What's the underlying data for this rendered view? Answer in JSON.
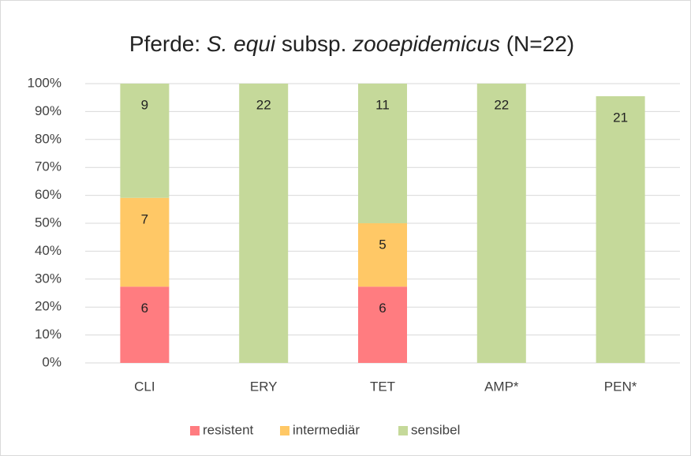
{
  "chart_data": {
    "type": "stacked_bar",
    "title": [
      "Pferde: ",
      "S. equi",
      " subsp. ",
      "zooepidemicus",
      " (N=22)"
    ],
    "title_italic": [
      false,
      true,
      false,
      true,
      false
    ],
    "categories": [
      "CLI",
      "ERY",
      "TET",
      "AMP*",
      "PEN*"
    ],
    "series": [
      {
        "name": "resistent",
        "color": "#ff7c80",
        "values": [
          27.3,
          0,
          27.3,
          0,
          0
        ],
        "counts": [
          6,
          null,
          6,
          null,
          null
        ]
      },
      {
        "name": "intermediär",
        "color": "#ffc866",
        "values": [
          31.8,
          0,
          22.7,
          0,
          0
        ],
        "counts": [
          7,
          null,
          5,
          null,
          null
        ]
      },
      {
        "name": "sensibel",
        "color": "#c5d99a",
        "values": [
          40.9,
          100,
          50.0,
          100,
          95.5
        ],
        "counts": [
          9,
          22,
          11,
          22,
          21
        ]
      }
    ],
    "ylim": [
      0,
      100
    ],
    "yticks": [
      {
        "value": 0,
        "label": "0%"
      },
      {
        "value": 10,
        "label": "10%"
      },
      {
        "value": 20,
        "label": "20%"
      },
      {
        "value": 30,
        "label": "30%"
      },
      {
        "value": 40,
        "label": "40%"
      },
      {
        "value": 50,
        "label": "50%"
      },
      {
        "value": 60,
        "label": "60%"
      },
      {
        "value": 70,
        "label": "70%"
      },
      {
        "value": 80,
        "label": "80%"
      },
      {
        "value": 90,
        "label": "90%"
      },
      {
        "value": 100,
        "label": "100%"
      }
    ],
    "grid": true,
    "legend": "bottom"
  }
}
